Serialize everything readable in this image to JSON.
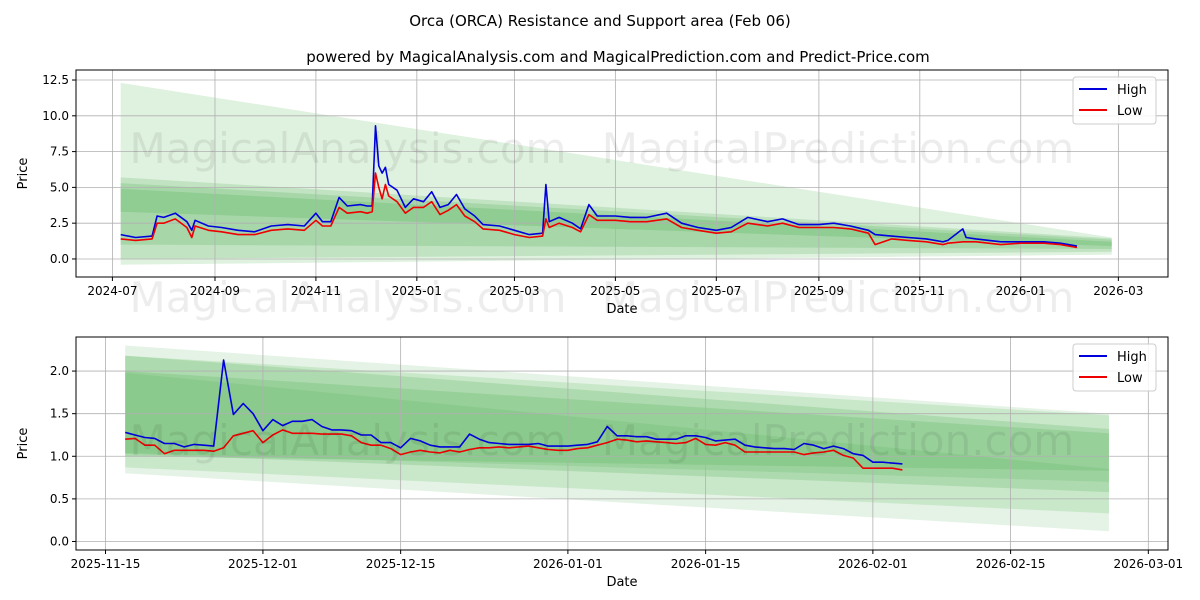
{
  "title": "Orca (ORCA) Resistance and Support area (Feb 06)",
  "subtitle": "powered by MagicalAnalysis.com and MagicalPrediction.com and Predict-Price.com",
  "watermarks": [
    "MagicalAnalysis.com",
    "MagicalPrediction.com"
  ],
  "colors": {
    "high": "#0000dd",
    "low": "#ee0000",
    "band": "#4caf50",
    "grid": "#b0b0b0"
  },
  "chart_data": [
    {
      "type": "line",
      "xlabel": "Date",
      "ylabel": "Price",
      "xlim": [
        "2024-06-09",
        "2026-03-31"
      ],
      "ylim": [
        -1.26,
        13.2
      ],
      "xticks": [
        "2024-07-01",
        "2024-09-01",
        "2024-11-01",
        "2025-01-01",
        "2025-03-01",
        "2025-05-01",
        "2025-07-01",
        "2025-09-01",
        "2025-11-01",
        "2026-01-01",
        "2026-03-01"
      ],
      "xtick_labels": [
        "2024-07",
        "2024-09",
        "2024-11",
        "2025-01",
        "2025-03",
        "2025-05",
        "2025-07",
        "2025-09",
        "2025-11",
        "2026-01",
        "2026-03"
      ],
      "yticks": [
        0,
        2.5,
        5,
        7.5,
        10,
        12.5
      ],
      "ytick_labels": [
        "0.0",
        "2.5",
        "5.0",
        "7.5",
        "10.0",
        "12.5"
      ],
      "grid": true,
      "legend": "top-right",
      "legend_entries": [
        "High",
        "Low"
      ],
      "bands": {
        "start": "2024-07-06",
        "end": "2026-02-25",
        "items": [
          {
            "start": [
              12.3,
              -0.4
            ],
            "end": [
              1.5,
              0.3
            ],
            "opacity": 0.18
          },
          {
            "start": [
              5.7,
              0.0
            ],
            "end": [
              1.45,
              0.5
            ],
            "opacity": 0.2
          },
          {
            "start": [
              5.3,
              1.0
            ],
            "end": [
              1.35,
              0.7
            ],
            "opacity": 0.22
          },
          {
            "start": [
              4.9,
              3.3
            ],
            "end": [
              1.2,
              0.9
            ],
            "opacity": 0.25
          }
        ]
      },
      "dates": [
        "2024-07-06",
        "2024-07-15",
        "2024-07-25",
        "2024-07-28",
        "2024-08-01",
        "2024-08-08",
        "2024-08-15",
        "2024-08-18",
        "2024-08-20",
        "2024-08-28",
        "2024-09-05",
        "2024-09-15",
        "2024-09-25",
        "2024-10-05",
        "2024-10-15",
        "2024-10-25",
        "2024-11-01",
        "2024-11-05",
        "2024-11-10",
        "2024-11-15",
        "2024-11-20",
        "2024-11-28",
        "2024-12-02",
        "2024-12-05",
        "2024-12-07",
        "2024-12-09",
        "2024-12-11",
        "2024-12-13",
        "2024-12-15",
        "2024-12-20",
        "2024-12-25",
        "2024-12-30",
        "2025-01-05",
        "2025-01-10",
        "2025-01-15",
        "2025-01-20",
        "2025-01-25",
        "2025-01-30",
        "2025-02-05",
        "2025-02-10",
        "2025-02-20",
        "2025-03-01",
        "2025-03-10",
        "2025-03-18",
        "2025-03-20",
        "2025-03-22",
        "2025-03-28",
        "2025-04-05",
        "2025-04-10",
        "2025-04-15",
        "2025-04-20",
        "2025-05-01",
        "2025-05-10",
        "2025-05-20",
        "2025-06-01",
        "2025-06-10",
        "2025-06-20",
        "2025-07-01",
        "2025-07-10",
        "2025-07-20",
        "2025-08-01",
        "2025-08-10",
        "2025-08-20",
        "2025-09-01",
        "2025-09-10",
        "2025-09-20",
        "2025-10-01",
        "2025-10-05",
        "2025-10-15",
        "2025-10-25",
        "2025-11-05",
        "2025-11-15",
        "2025-11-18",
        "2025-11-27",
        "2025-11-29",
        "2025-12-05",
        "2025-12-20",
        "2026-01-01",
        "2026-01-15",
        "2026-01-25",
        "2026-02-04"
      ],
      "series": [
        {
          "name": "High",
          "values": [
            1.7,
            1.5,
            1.6,
            3.0,
            2.9,
            3.2,
            2.6,
            2.0,
            2.7,
            2.3,
            2.2,
            2.0,
            1.9,
            2.3,
            2.4,
            2.3,
            3.2,
            2.6,
            2.6,
            4.3,
            3.7,
            3.8,
            3.7,
            3.7,
            9.3,
            6.5,
            6.0,
            6.4,
            5.2,
            4.8,
            3.6,
            4.2,
            4.0,
            4.7,
            3.6,
            3.8,
            4.5,
            3.5,
            3.0,
            2.4,
            2.3,
            2.0,
            1.7,
            1.8,
            5.2,
            2.6,
            2.9,
            2.5,
            2.1,
            3.8,
            3.0,
            3.0,
            2.9,
            2.9,
            3.2,
            2.5,
            2.2,
            2.0,
            2.2,
            2.9,
            2.6,
            2.8,
            2.4,
            2.4,
            2.5,
            2.3,
            2.0,
            1.7,
            1.6,
            1.5,
            1.4,
            1.2,
            1.3,
            2.1,
            1.5,
            1.4,
            1.2,
            1.2,
            1.2,
            1.1,
            0.9
          ]
        },
        {
          "name": "Low",
          "values": [
            1.4,
            1.3,
            1.4,
            2.5,
            2.5,
            2.8,
            2.2,
            1.5,
            2.3,
            2.0,
            1.9,
            1.7,
            1.7,
            2.0,
            2.1,
            2.0,
            2.7,
            2.3,
            2.3,
            3.6,
            3.2,
            3.3,
            3.2,
            3.3,
            6.0,
            5.0,
            4.2,
            5.2,
            4.4,
            4.0,
            3.2,
            3.6,
            3.6,
            4.0,
            3.1,
            3.4,
            3.8,
            3.0,
            2.6,
            2.1,
            2.0,
            1.7,
            1.5,
            1.6,
            2.8,
            2.2,
            2.5,
            2.2,
            1.9,
            3.1,
            2.7,
            2.7,
            2.6,
            2.6,
            2.8,
            2.2,
            2.0,
            1.8,
            1.9,
            2.5,
            2.3,
            2.5,
            2.2,
            2.2,
            2.2,
            2.1,
            1.8,
            1.0,
            1.4,
            1.3,
            1.2,
            1.0,
            1.1,
            1.2,
            1.2,
            1.2,
            1.0,
            1.1,
            1.1,
            1.0,
            0.8
          ]
        }
      ]
    },
    {
      "type": "line",
      "xlabel": "Date",
      "ylabel": "Price",
      "xlim": [
        "2025-11-12",
        "2026-03-03"
      ],
      "ylim": [
        -0.1,
        2.4
      ],
      "xticks": [
        "2025-11-15",
        "2025-12-01",
        "2025-12-15",
        "2026-01-01",
        "2026-01-15",
        "2026-02-01",
        "2026-02-15",
        "2026-03-01"
      ],
      "xtick_labels": [
        "2025-11-15",
        "2025-12-01",
        "2025-12-15",
        "2026-01-01",
        "2026-01-15",
        "2026-02-01",
        "2026-02-15",
        "2026-03-01"
      ],
      "yticks": [
        0,
        0.5,
        1.0,
        1.5,
        2.0
      ],
      "ytick_labels": [
        "0.0",
        "0.5",
        "1.0",
        "1.5",
        "2.0"
      ],
      "grid": true,
      "legend": "top-right",
      "legend_entries": [
        "High",
        "Low"
      ],
      "bands": {
        "start": "2025-11-17",
        "end": "2026-02-25",
        "items": [
          {
            "start": [
              2.3,
              0.8
            ],
            "end": [
              1.5,
              0.12
            ],
            "opacity": 0.15
          },
          {
            "start": [
              2.18,
              0.87
            ],
            "end": [
              1.48,
              0.33
            ],
            "opacity": 0.18
          },
          {
            "start": [
              2.18,
              1.03
            ],
            "end": [
              1.32,
              0.58
            ],
            "opacity": 0.22
          },
          {
            "start": [
              2.0,
              1.0
            ],
            "end": [
              1.27,
              0.83
            ],
            "opacity": 0.22
          },
          {
            "start": [
              1.98,
              1.04
            ],
            "end": [
              0.85,
              0.7
            ],
            "opacity": 0.18
          }
        ]
      },
      "start_date": "2025-11-17",
      "series": [
        {
          "name": "High",
          "values": [
            1.28,
            1.25,
            1.22,
            1.21,
            1.15,
            1.15,
            1.11,
            1.14,
            1.13,
            1.12,
            2.13,
            1.49,
            1.62,
            1.5,
            1.3,
            1.43,
            1.36,
            1.41,
            1.41,
            1.43,
            1.35,
            1.31,
            1.31,
            1.3,
            1.25,
            1.25,
            1.16,
            1.16,
            1.1,
            1.21,
            1.18,
            1.13,
            1.11,
            1.11,
            1.11,
            1.26,
            1.2,
            1.16,
            1.15,
            1.14,
            1.14,
            1.14,
            1.15,
            1.12,
            1.12,
            1.12,
            1.13,
            1.14,
            1.17,
            1.35,
            1.24,
            1.24,
            1.23,
            1.23,
            1.2,
            1.2,
            1.2,
            1.24,
            1.24,
            1.22,
            1.18,
            1.19,
            1.2,
            1.13,
            1.11,
            1.1,
            1.09,
            1.09,
            1.08,
            1.15,
            1.13,
            1.09,
            1.12,
            1.09,
            1.03,
            1.01,
            0.93,
            0.93,
            0.92,
            0.91
          ]
        },
        {
          "name": "Low",
          "values": [
            1.2,
            1.21,
            1.13,
            1.13,
            1.03,
            1.07,
            1.07,
            1.07,
            1.07,
            1.06,
            1.1,
            1.24,
            1.27,
            1.3,
            1.16,
            1.25,
            1.31,
            1.27,
            1.27,
            1.27,
            1.26,
            1.26,
            1.26,
            1.24,
            1.16,
            1.13,
            1.13,
            1.09,
            1.02,
            1.05,
            1.07,
            1.05,
            1.04,
            1.07,
            1.05,
            1.08,
            1.1,
            1.1,
            1.11,
            1.1,
            1.11,
            1.12,
            1.1,
            1.08,
            1.07,
            1.07,
            1.09,
            1.1,
            1.13,
            1.16,
            1.2,
            1.19,
            1.17,
            1.18,
            1.17,
            1.16,
            1.15,
            1.16,
            1.21,
            1.14,
            1.13,
            1.16,
            1.13,
            1.05,
            1.05,
            1.05,
            1.05,
            1.05,
            1.05,
            1.02,
            1.04,
            1.05,
            1.07,
            1.01,
            0.98,
            0.86,
            0.86,
            0.86,
            0.86,
            0.84
          ]
        }
      ]
    }
  ]
}
